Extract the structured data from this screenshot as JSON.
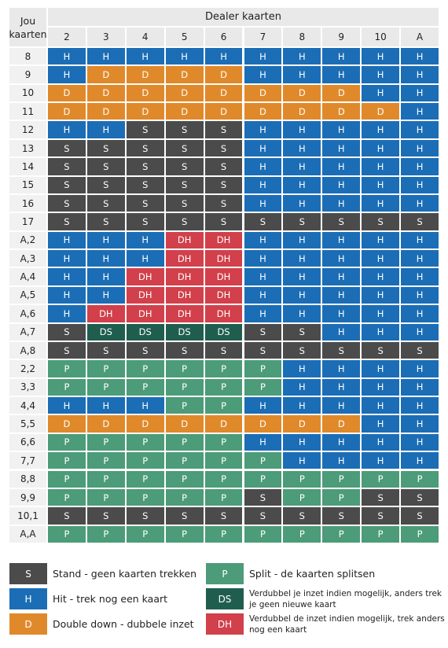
{
  "header": {
    "corner": "Jou kaarten",
    "title": "Dealer kaarten",
    "columns": [
      "2",
      "3",
      "4",
      "5",
      "6",
      "7",
      "8",
      "9",
      "10",
      "A"
    ]
  },
  "colors": {
    "H": "#1b6db6",
    "D": "#e0892b",
    "S": "#4b4b4b",
    "P": "#4c9b79",
    "DS": "#1f5e4f",
    "DH": "#d1404b"
  },
  "rows": [
    {
      "label": "8",
      "cells": [
        "H",
        "H",
        "H",
        "H",
        "H",
        "H",
        "H",
        "H",
        "H",
        "H"
      ]
    },
    {
      "label": "9",
      "cells": [
        "H",
        "D",
        "D",
        "D",
        "D",
        "H",
        "H",
        "H",
        "H",
        "H"
      ]
    },
    {
      "label": "10",
      "cells": [
        "D",
        "D",
        "D",
        "D",
        "D",
        "D",
        "D",
        "D",
        "H",
        "H"
      ]
    },
    {
      "label": "11",
      "cells": [
        "D",
        "D",
        "D",
        "D",
        "D",
        "D",
        "D",
        "D",
        "D",
        "H"
      ]
    },
    {
      "label": "12",
      "cells": [
        "H",
        "H",
        "S",
        "S",
        "S",
        "H",
        "H",
        "H",
        "H",
        "H"
      ]
    },
    {
      "label": "13",
      "cells": [
        "S",
        "S",
        "S",
        "S",
        "S",
        "H",
        "H",
        "H",
        "H",
        "H"
      ]
    },
    {
      "label": "14",
      "cells": [
        "S",
        "S",
        "S",
        "S",
        "S",
        "H",
        "H",
        "H",
        "H",
        "H"
      ]
    },
    {
      "label": "15",
      "cells": [
        "S",
        "S",
        "S",
        "S",
        "S",
        "H",
        "H",
        "H",
        "H",
        "H"
      ]
    },
    {
      "label": "16",
      "cells": [
        "S",
        "S",
        "S",
        "S",
        "S",
        "H",
        "H",
        "H",
        "H",
        "H"
      ]
    },
    {
      "label": "17",
      "cells": [
        "S",
        "S",
        "S",
        "S",
        "S",
        "S",
        "S",
        "S",
        "S",
        "S"
      ]
    },
    {
      "label": "A,2",
      "cells": [
        "H",
        "H",
        "H",
        "DH",
        "DH",
        "H",
        "H",
        "H",
        "H",
        "H"
      ]
    },
    {
      "label": "A,3",
      "cells": [
        "H",
        "H",
        "H",
        "DH",
        "DH",
        "H",
        "H",
        "H",
        "H",
        "H"
      ]
    },
    {
      "label": "A,4",
      "cells": [
        "H",
        "H",
        "DH",
        "DH",
        "DH",
        "H",
        "H",
        "H",
        "H",
        "H"
      ]
    },
    {
      "label": "A,5",
      "cells": [
        "H",
        "H",
        "DH",
        "DH",
        "DH",
        "H",
        "H",
        "H",
        "H",
        "H"
      ]
    },
    {
      "label": "A,6",
      "cells": [
        "H",
        "DH",
        "DH",
        "DH",
        "DH",
        "H",
        "H",
        "H",
        "H",
        "H"
      ]
    },
    {
      "label": "A,7",
      "cells": [
        "S",
        "DS",
        "DS",
        "DS",
        "DS",
        "S",
        "S",
        "H",
        "H",
        "H"
      ]
    },
    {
      "label": "A,8",
      "cells": [
        "S",
        "S",
        "S",
        "S",
        "S",
        "S",
        "S",
        "S",
        "S",
        "S"
      ]
    },
    {
      "label": "2,2",
      "cells": [
        "P",
        "P",
        "P",
        "P",
        "P",
        "P",
        "H",
        "H",
        "H",
        "H"
      ]
    },
    {
      "label": "3,3",
      "cells": [
        "P",
        "P",
        "P",
        "P",
        "P",
        "P",
        "H",
        "H",
        "H",
        "H"
      ]
    },
    {
      "label": "4,4",
      "cells": [
        "H",
        "H",
        "H",
        "P",
        "P",
        "H",
        "H",
        "H",
        "H",
        "H"
      ]
    },
    {
      "label": "5,5",
      "cells": [
        "D",
        "D",
        "D",
        "D",
        "D",
        "D",
        "D",
        "D",
        "H",
        "H"
      ]
    },
    {
      "label": "6,6",
      "cells": [
        "P",
        "P",
        "P",
        "P",
        "P",
        "H",
        "H",
        "H",
        "H",
        "H"
      ]
    },
    {
      "label": "7,7",
      "cells": [
        "P",
        "P",
        "P",
        "P",
        "P",
        "P",
        "H",
        "H",
        "H",
        "H"
      ]
    },
    {
      "label": "8,8",
      "cells": [
        "P",
        "P",
        "P",
        "P",
        "P",
        "P",
        "P",
        "P",
        "P",
        "P"
      ]
    },
    {
      "label": "9,9",
      "cells": [
        "P",
        "P",
        "P",
        "P",
        "P",
        "S",
        "P",
        "P",
        "S",
        "S"
      ]
    },
    {
      "label": "10,1",
      "cells": [
        "S",
        "S",
        "S",
        "S",
        "S",
        "S",
        "S",
        "S",
        "S",
        "S"
      ]
    },
    {
      "label": "A,A",
      "cells": [
        "P",
        "P",
        "P",
        "P",
        "P",
        "P",
        "P",
        "P",
        "P",
        "P"
      ]
    }
  ],
  "legend": [
    {
      "code": "S",
      "text": "Stand - geen kaarten trekken"
    },
    {
      "code": "P",
      "text": "Split - de kaarten splitsen"
    },
    {
      "code": "H",
      "text": "Hit - trek nog een kaart"
    },
    {
      "code": "DS",
      "text": "Verdubbel je inzet indien mogelijk, anders trek je geen nieuwe kaart"
    },
    {
      "code": "D",
      "text": "Double down - dubbele inzet"
    },
    {
      "code": "DH",
      "text": "Verdubbel de inzet indien mogelijk, trek anders nog een kaart"
    }
  ]
}
